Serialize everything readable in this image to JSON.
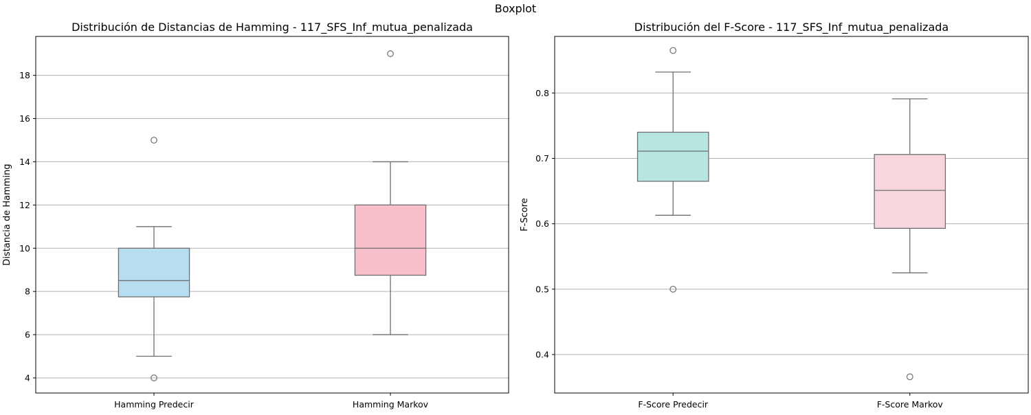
{
  "figure": {
    "suptitle": "Boxplot"
  },
  "chart_data": [
    {
      "type": "box",
      "title": "Distribución de Distancias de Hamming - 117_SFS_Inf_mutua_penalizada",
      "xlabel": "",
      "ylabel": "Distancia de Hamming",
      "ylim": [
        3.3,
        19.8
      ],
      "yticks": [
        4,
        6,
        8,
        10,
        12,
        14,
        16,
        18
      ],
      "grid": "y",
      "categories": [
        "Hamming Predecir",
        "Hamming Markov"
      ],
      "boxes": [
        {
          "category": "Hamming Predecir",
          "whisker_low": 5,
          "q1": 7.75,
          "median": 8.5,
          "q3": 10,
          "whisker_high": 11,
          "outliers": [
            4,
            15
          ],
          "color": "#b7ddf0"
        },
        {
          "category": "Hamming Markov",
          "whisker_low": 6,
          "q1": 8.75,
          "median": 10,
          "q3": 12,
          "whisker_high": 14,
          "outliers": [
            19
          ],
          "color": "#f6bfc9"
        }
      ]
    },
    {
      "type": "box",
      "title": "Distribución del F-Score - 117_SFS_Inf_mutua_penalizada",
      "xlabel": "",
      "ylabel": "F-Score",
      "ylim": [
        0.3412,
        0.8865
      ],
      "yticks": [
        0.4,
        0.5,
        0.6,
        0.7,
        0.8
      ],
      "ytick_labels": [
        "0.4",
        "0.5",
        "0.6",
        "0.7",
        "0.8"
      ],
      "grid": "y",
      "categories": [
        "F-Score Predecir",
        "F-Score Markov"
      ],
      "boxes": [
        {
          "category": "F-Score Predecir",
          "whisker_low": 0.613,
          "q1": 0.665,
          "median": 0.711,
          "q3": 0.74,
          "whisker_high": 0.832,
          "outliers": [
            0.5,
            0.865
          ],
          "color": "#b6e6df"
        },
        {
          "category": "F-Score Markov",
          "whisker_low": 0.525,
          "q1": 0.593,
          "median": 0.651,
          "q3": 0.706,
          "whisker_high": 0.791,
          "outliers": [
            0.366
          ],
          "color": "#f8d6de"
        }
      ]
    }
  ]
}
